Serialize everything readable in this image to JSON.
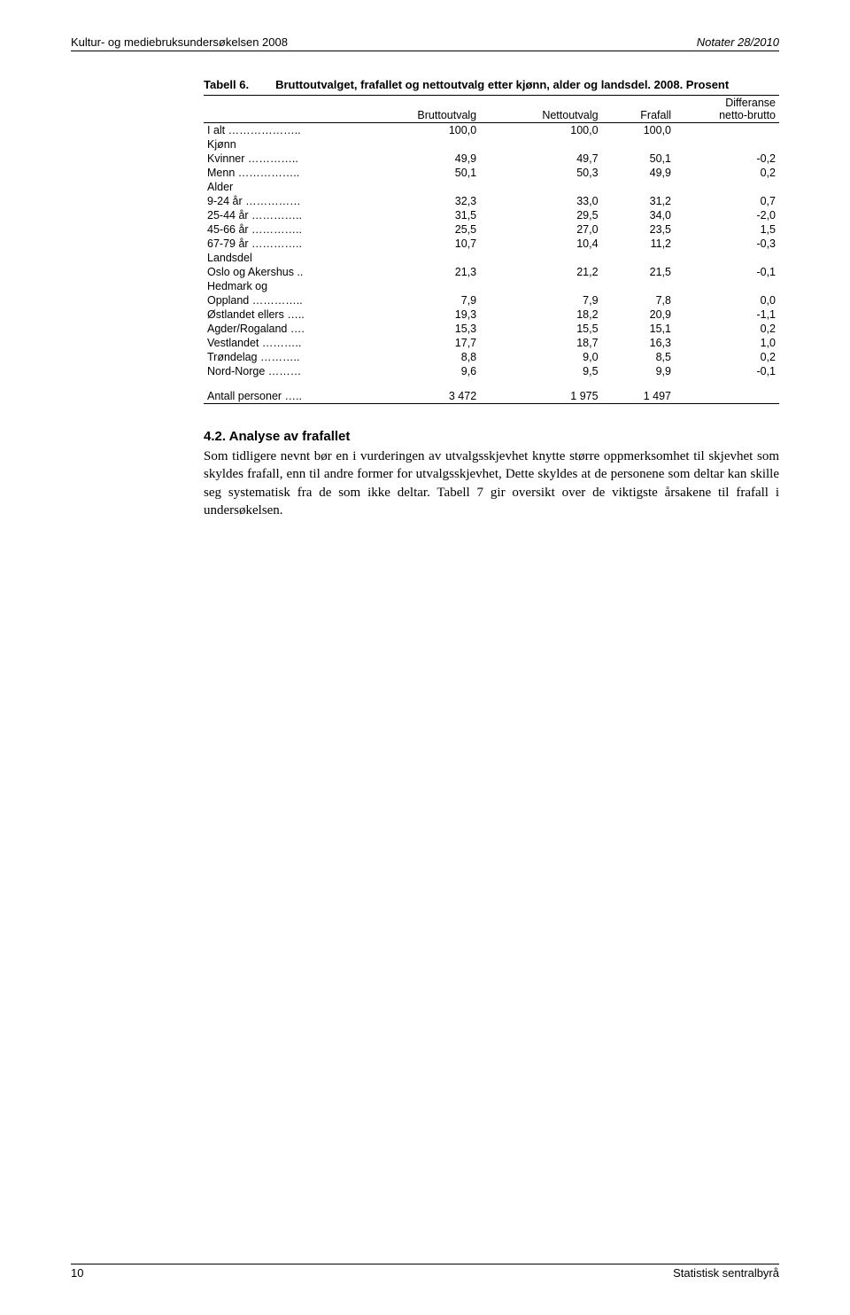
{
  "header": {
    "left": "Kultur- og mediebruksundersøkelsen 2008",
    "right": "Notater 28/2010"
  },
  "table": {
    "label": "Tabell 6.",
    "description": "Bruttoutvalget, frafallet og nettoutvalg etter kjønn, alder og landsdel. 2008. Prosent",
    "columns": [
      "",
      "Bruttoutvalg",
      "Nettoutvalg",
      "Frafall",
      "Differanse netto-brutto"
    ],
    "rows": [
      {
        "label": "I alt ………………..",
        "v": [
          "100,0",
          "100,0",
          "100,0",
          ""
        ]
      },
      {
        "group": "Kjønn"
      },
      {
        "label": "Kvinner …………..",
        "v": [
          "49,9",
          "49,7",
          "50,1",
          "-0,2"
        ]
      },
      {
        "label": "Menn ……………..",
        "v": [
          "50,1",
          "50,3",
          "49,9",
          "0,2"
        ]
      },
      {
        "group": "Alder"
      },
      {
        "label": "9-24 år ……………",
        "v": [
          "32,3",
          "33,0",
          "31,2",
          "0,7"
        ]
      },
      {
        "label": "25-44 år …………..",
        "v": [
          "31,5",
          "29,5",
          "34,0",
          "-2,0"
        ]
      },
      {
        "label": "45-66 år …………..",
        "v": [
          "25,5",
          "27,0",
          "23,5",
          "1,5"
        ]
      },
      {
        "label": "67-79 år …………..",
        "v": [
          "10,7",
          "10,4",
          "11,2",
          "-0,3"
        ]
      },
      {
        "group": "Landsdel"
      },
      {
        "label": "Oslo og Akershus ..",
        "v": [
          "21,3",
          "21,2",
          "21,5",
          "-0,1"
        ]
      },
      {
        "label": "Hedmark og",
        "v": [
          "",
          "",
          "",
          ""
        ]
      },
      {
        "label": "Oppland …………..",
        "v": [
          "7,9",
          "7,9",
          "7,8",
          "0,0"
        ]
      },
      {
        "label": "Østlandet ellers …..",
        "v": [
          "19,3",
          "18,2",
          "20,9",
          "-1,1"
        ]
      },
      {
        "label": "Agder/Rogaland ….",
        "v": [
          "15,3",
          "15,5",
          "15,1",
          "0,2"
        ]
      },
      {
        "label": "Vestlandet ………..",
        "v": [
          "17,7",
          "18,7",
          "16,3",
          "1,0"
        ]
      },
      {
        "label": "Trøndelag ………..",
        "v": [
          "8,8",
          "9,0",
          "8,5",
          "0,2"
        ]
      },
      {
        "label": "Nord-Norge ………",
        "v": [
          "9,6",
          "9,5",
          "9,9",
          "-0,1"
        ]
      },
      {
        "spacer": true
      },
      {
        "label": "Antall personer …..",
        "v": [
          "3 472",
          "1 975",
          "1 497",
          ""
        ],
        "last": true
      }
    ]
  },
  "section": {
    "heading": "4.2. Analyse av frafallet",
    "body": "Som tidligere nevnt bør en i vurderingen av utvalgsskjevhet knytte større oppmerksomhet til skjevhet som skyldes frafall, enn til andre former for utvalgsskjevhet, Dette skyldes at de personene som deltar kan skille seg systematisk fra de som ikke deltar. Tabell 7 gir oversikt over de viktigste årsakene til frafall i undersøkelsen."
  },
  "footer": {
    "page": "10",
    "source": "Statistisk sentralbyrå"
  }
}
